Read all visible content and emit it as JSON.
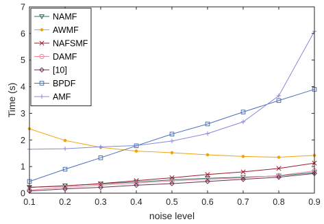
{
  "chart_data": {
    "type": "line",
    "xlabel": "noise level",
    "ylabel": "Time (s)",
    "xlim": [
      0.1,
      0.9
    ],
    "ylim": [
      0,
      7
    ],
    "xticks": [
      "0.1",
      "0.2",
      "0.3",
      "0.4",
      "0.5",
      "0.6",
      "0.7",
      "0.8",
      "0.9"
    ],
    "yticks": [
      "0",
      "1",
      "2",
      "3",
      "4",
      "5",
      "6",
      "7"
    ],
    "grid": false,
    "legend_position": "top-left",
    "x": [
      0.1,
      0.2,
      0.3,
      0.4,
      0.5,
      0.6,
      0.7,
      0.8,
      0.9
    ],
    "series": [
      {
        "name": "NAMF",
        "color": "#2e6b5e",
        "marker": "triangle-down",
        "values": [
          0.22,
          0.28,
          0.35,
          0.42,
          0.5,
          0.56,
          0.6,
          0.65,
          0.78
        ]
      },
      {
        "name": "AWMF",
        "color": "#f0a30a",
        "marker": "dot",
        "values": [
          2.42,
          1.98,
          1.72,
          1.58,
          1.52,
          1.44,
          1.38,
          1.35,
          1.42
        ]
      },
      {
        "name": "NAFSMF",
        "color": "#9b1b2b",
        "marker": "x",
        "values": [
          0.22,
          0.27,
          0.36,
          0.47,
          0.58,
          0.7,
          0.8,
          0.93,
          1.13
        ]
      },
      {
        "name": "DAMF",
        "color": "#e88a9e",
        "marker": "circle",
        "values": [
          0.12,
          0.22,
          0.3,
          0.38,
          0.46,
          0.52,
          0.58,
          0.66,
          0.84
        ]
      },
      {
        "name": "[10]",
        "color": "#6a2e52",
        "marker": "diamond",
        "values": [
          0.08,
          0.16,
          0.22,
          0.3,
          0.36,
          0.44,
          0.52,
          0.6,
          0.74
        ]
      },
      {
        "name": "BPDF",
        "color": "#4a6fb5",
        "marker": "square",
        "values": [
          0.44,
          0.9,
          1.33,
          1.78,
          2.22,
          2.6,
          3.05,
          3.48,
          3.9
        ]
      },
      {
        "name": "AMF",
        "color": "#8a86d8",
        "marker": "plus",
        "values": [
          1.65,
          1.67,
          1.74,
          1.79,
          1.96,
          2.24,
          2.68,
          3.66,
          6.08
        ]
      }
    ]
  }
}
